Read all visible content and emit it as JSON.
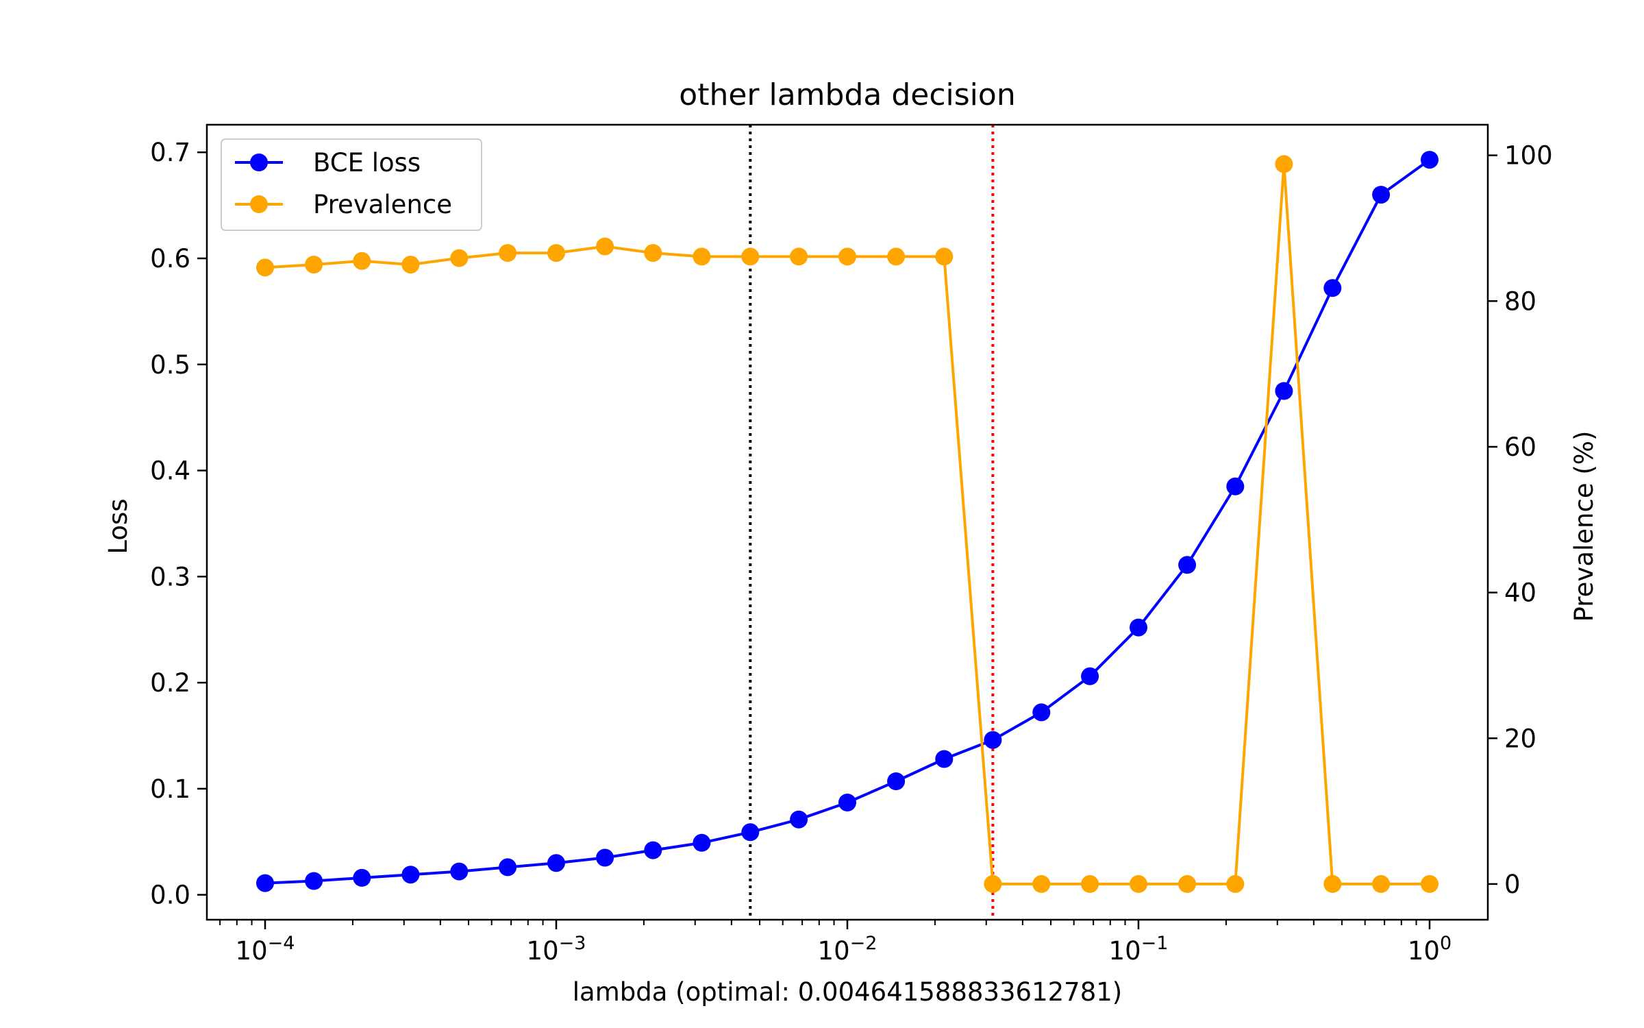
{
  "chart_data": {
    "type": "line",
    "title": "other lambda decision",
    "xlabel": "lambda (optimal: 0.004641588833612781)",
    "ylabel_left": "Loss",
    "ylabel_right": "Prevalence (%)",
    "x_scale": "log",
    "xlim": [
      6.31e-05,
      1.585
    ],
    "ylim_left": [
      -0.0235,
      0.726
    ],
    "ylim_right": [
      -4.9,
      104.2
    ],
    "x_ticks": [
      {
        "value": 0.0001,
        "base": "10",
        "exp": "−4"
      },
      {
        "value": 0.001,
        "base": "10",
        "exp": "−3"
      },
      {
        "value": 0.01,
        "base": "10",
        "exp": "−2"
      },
      {
        "value": 0.1,
        "base": "10",
        "exp": "−1"
      },
      {
        "value": 1,
        "base": "10",
        "exp": "0"
      }
    ],
    "y_ticks_left": [
      "0.0",
      "0.1",
      "0.2",
      "0.3",
      "0.4",
      "0.5",
      "0.6",
      "0.7"
    ],
    "y_ticks_right": [
      "0",
      "20",
      "40",
      "60",
      "80",
      "100"
    ],
    "x": [
      0.0001,
      0.000147,
      0.000215,
      0.000316,
      0.000464,
      0.000681,
      0.001,
      0.00147,
      0.00215,
      0.00316,
      0.00464,
      0.00681,
      0.01,
      0.0147,
      0.0215,
      0.0316,
      0.0464,
      0.0681,
      0.1,
      0.147,
      0.215,
      0.316,
      0.464,
      0.681,
      1.0
    ],
    "series": [
      {
        "name": "BCE loss",
        "axis": "left",
        "color": "#0000ff",
        "values": [
          0.011,
          0.013,
          0.016,
          0.019,
          0.022,
          0.026,
          0.03,
          0.035,
          0.042,
          0.049,
          0.059,
          0.071,
          0.087,
          0.107,
          0.128,
          0.146,
          0.172,
          0.206,
          0.252,
          0.311,
          0.385,
          0.475,
          0.572,
          0.66,
          0.693
        ]
      },
      {
        "name": "Prevalence",
        "axis": "right",
        "color": "#ffa500",
        "values": [
          84.6,
          85.0,
          85.5,
          85.0,
          85.9,
          86.6,
          86.6,
          87.5,
          86.6,
          86.1,
          86.1,
          86.1,
          86.1,
          86.1,
          86.1,
          0.0,
          0.0,
          0.0,
          0.0,
          0.0,
          0.0,
          98.8,
          0.0,
          0.0,
          0.0
        ]
      }
    ],
    "vlines": [
      {
        "x": 0.004641588833612781,
        "color": "#000000",
        "style": "dotted"
      },
      {
        "x": 0.0316,
        "color": "#ff0000",
        "style": "dotted"
      }
    ],
    "legend": {
      "placement": "upper-left",
      "entries": [
        "BCE loss",
        "Prevalence"
      ]
    },
    "grid": false
  }
}
